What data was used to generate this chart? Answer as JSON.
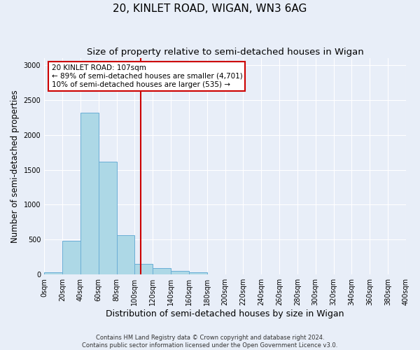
{
  "title": "20, KINLET ROAD, WIGAN, WN3 6AG",
  "subtitle": "Size of property relative to semi-detached houses in Wigan",
  "xlabel": "Distribution of semi-detached houses by size in Wigan",
  "ylabel": "Number of semi-detached properties",
  "bin_edges": [
    0,
    20,
    40,
    60,
    80,
    100,
    120,
    140,
    160,
    180,
    200,
    220,
    240,
    260,
    280,
    300,
    320,
    340,
    360,
    380,
    400
  ],
  "bar_values": [
    30,
    480,
    2320,
    1620,
    560,
    150,
    90,
    55,
    35,
    0,
    0,
    0,
    0,
    0,
    0,
    0,
    0,
    0,
    0,
    0
  ],
  "bar_color": "#add8e6",
  "bar_edgecolor": "#6aaed6",
  "property_size": 107,
  "vline_color": "#cc0000",
  "annotation_line1": "20 KINLET ROAD: 107sqm",
  "annotation_line2": "← 89% of semi-detached houses are smaller (4,701)",
  "annotation_line3": "10% of semi-detached houses are larger (535) →",
  "annotation_box_color": "#ffffff",
  "annotation_box_edgecolor": "#cc0000",
  "ylim": [
    0,
    3100
  ],
  "xlim": [
    0,
    400
  ],
  "background_color": "#e8eef8",
  "plot_background_color": "#e8eef8",
  "footer_line1": "Contains HM Land Registry data © Crown copyright and database right 2024.",
  "footer_line2": "Contains public sector information licensed under the Open Government Licence v3.0.",
  "title_fontsize": 11,
  "subtitle_fontsize": 9.5,
  "tick_label_fontsize": 7,
  "ylabel_fontsize": 8.5,
  "xlabel_fontsize": 9,
  "annotation_fontsize": 7.5,
  "footer_fontsize": 6
}
